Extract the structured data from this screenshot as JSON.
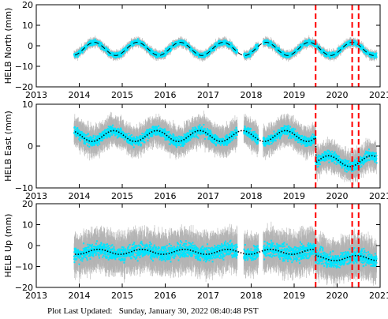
{
  "chart_data": [
    {
      "type": "scatter",
      "ylabel": "HELB North (mm)",
      "ylim": [
        -20,
        20
      ],
      "yticks": [
        "20",
        "10",
        "0",
        "−10",
        "−20"
      ],
      "xlim": [
        2013,
        2021
      ],
      "xticks": [
        "2013",
        "2014",
        "2015",
        "2016",
        "2017",
        "2018",
        "2019",
        "2020",
        "2021"
      ],
      "xtick_labels_shown": false,
      "model_line_style": "dashed",
      "series": [
        {
          "name": "",
          "color": "#00e5ff",
          "error_bar_color": "#b4b4b4",
          "data_spans": [
            [
              2013.88,
              2017.68
            ],
            [
              2017.83,
              2018.17
            ],
            [
              2018.28,
              2020.92
            ]
          ],
          "gap_ranges": [
            [
              2017.68,
              2017.83
            ],
            [
              2018.17,
              2018.28
            ]
          ],
          "model": {
            "offset": -1.5,
            "amplitude": 3.2,
            "phase": 0.1,
            "trend": 0.0,
            "steps": [],
            "noise": 1.2,
            "err": 1.5
          }
        }
      ]
    },
    {
      "type": "scatter",
      "ylabel": "HELB East (mm)",
      "ylim": [
        -10,
        10
      ],
      "yticks": [
        "10",
        "0",
        "−10"
      ],
      "xlim": [
        2013,
        2021
      ],
      "xticks": [
        "2013",
        "2014",
        "2015",
        "2016",
        "2017",
        "2018",
        "2019",
        "2020",
        "2021"
      ],
      "xtick_labels_shown": true,
      "model_line_style": "dotted",
      "series": [
        {
          "name": "",
          "color": "#00e5ff",
          "error_bar_color": "#b4b4b4",
          "data_spans": [
            [
              2013.88,
              2017.68
            ],
            [
              2017.83,
              2018.17
            ],
            [
              2018.28,
              2020.92
            ]
          ],
          "gap_ranges": [
            [
              2017.68,
              2017.83
            ],
            [
              2018.17,
              2018.28
            ]
          ],
          "model": {
            "offset": 2.4,
            "amplitude": 1.3,
            "phase": 0.55,
            "trend": 0.0,
            "steps": [
              [
                2019.5,
                -6.0
              ]
            ],
            "noise": 1.2,
            "err": 2.5
          }
        }
      ]
    },
    {
      "type": "scatter",
      "ylabel": "HELB Up (mm)",
      "ylim": [
        -20,
        20
      ],
      "yticks": [
        "20",
        "10",
        "0",
        "−10",
        "−20"
      ],
      "xlim": [
        2013,
        2021
      ],
      "xticks": [
        "2013",
        "2014",
        "2015",
        "2016",
        "2017",
        "2018",
        "2019",
        "2020",
        "2021"
      ],
      "xtick_labels_shown": true,
      "model_line_style": "dotted",
      "series": [
        {
          "name": "",
          "color": "#00e5ff",
          "error_bar_color": "#b4b4b4",
          "data_spans": [
            [
              2013.88,
              2017.68
            ],
            [
              2017.83,
              2018.17
            ],
            [
              2018.28,
              2020.92
            ]
          ],
          "gap_ranges": [
            [
              2017.68,
              2017.83
            ],
            [
              2018.17,
              2018.28
            ]
          ],
          "model": {
            "offset": -3.0,
            "amplitude": 1.2,
            "phase": 0.2,
            "trend": 0.0,
            "steps": [
              [
                2019.5,
                -3.0
              ]
            ],
            "noise": 3.5,
            "err": 7.0
          }
        }
      ]
    }
  ],
  "event_lines": {
    "years": [
      2019.5,
      2020.35,
      2020.5
    ],
    "color": "#ff0000",
    "style": "dashed"
  },
  "footer": {
    "label": "Plot Last Updated:",
    "datetime": "Sunday, January 30, 2022 08:40:48 PST"
  }
}
